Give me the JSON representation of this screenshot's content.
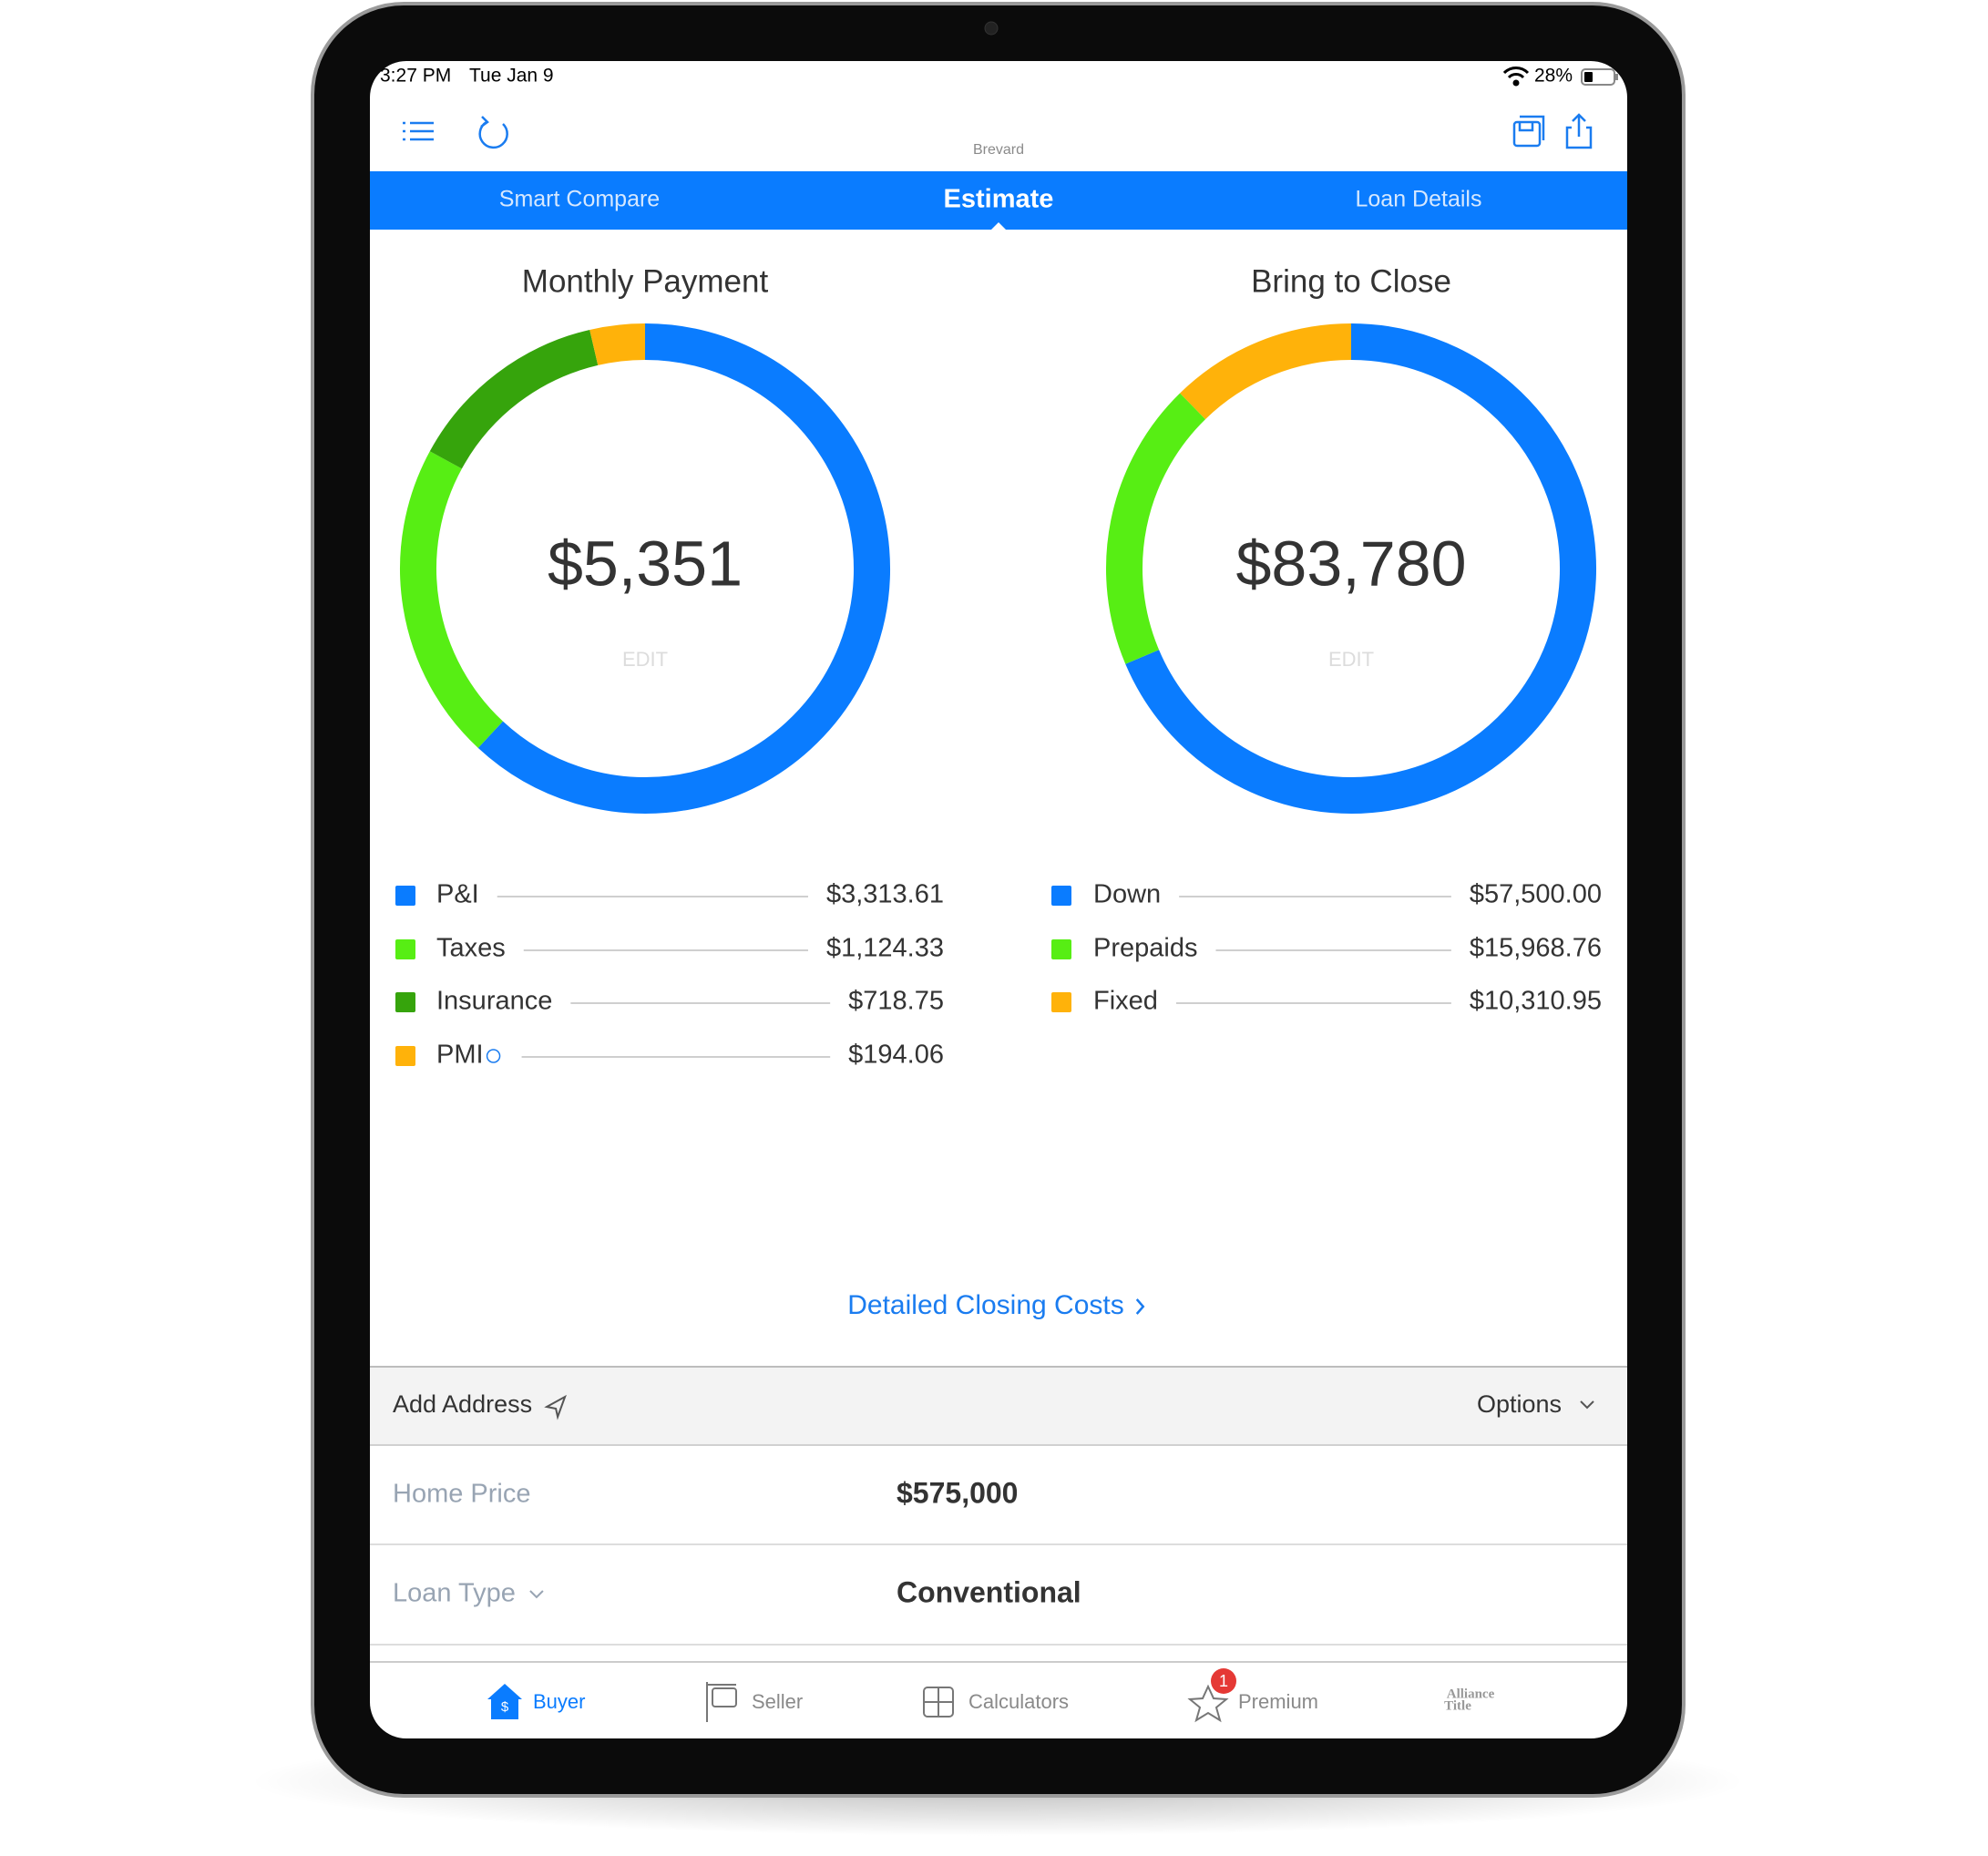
{
  "status_bar": {
    "time": "3:27 PM",
    "date": "Tue Jan 9",
    "battery": "28%"
  },
  "header": {
    "location": "Brevard"
  },
  "tabs": [
    "Smart Compare",
    "Estimate",
    "Loan Details"
  ],
  "active_tab": 1,
  "chart_data": [
    {
      "type": "donut",
      "title": "Monthly Payment",
      "center_label": "$5,351",
      "edit_label": "EDIT",
      "categories": [
        "P&I",
        "Taxes",
        "Insurance",
        "PMI"
      ],
      "values": [
        3313.61,
        1124.33,
        718.75,
        194.06
      ],
      "value_labels": [
        "$3,313.61",
        "$1,124.33",
        "$718.75",
        "$194.06"
      ],
      "colors": [
        "#0a7cff",
        "#57ee14",
        "#36a40c",
        "#ffb20a"
      ]
    },
    {
      "type": "donut",
      "title": "Bring to Close",
      "center_label": "$83,780",
      "edit_label": "EDIT",
      "categories": [
        "Down",
        "Prepaids",
        "Fixed"
      ],
      "values": [
        57500.0,
        15968.76,
        10310.95
      ],
      "value_labels": [
        "$57,500.00",
        "$15,968.76",
        "$10,310.95"
      ],
      "colors": [
        "#0a7cff",
        "#57ee14",
        "#ffb20a"
      ]
    }
  ],
  "link": "Detailed Closing Costs",
  "address_bar": {
    "add_address": "Add Address",
    "options": "Options"
  },
  "form": [
    {
      "label": "Home Price",
      "value": "$575,000"
    },
    {
      "label": "Loan Type",
      "value": "Conventional"
    }
  ],
  "tab_bar": {
    "items": [
      {
        "label": "Buyer"
      },
      {
        "label": "Seller"
      },
      {
        "label": "Calculators"
      },
      {
        "label": "Premium",
        "badge": 1
      }
    ],
    "brand": [
      "Alliance",
      "Title"
    ]
  }
}
